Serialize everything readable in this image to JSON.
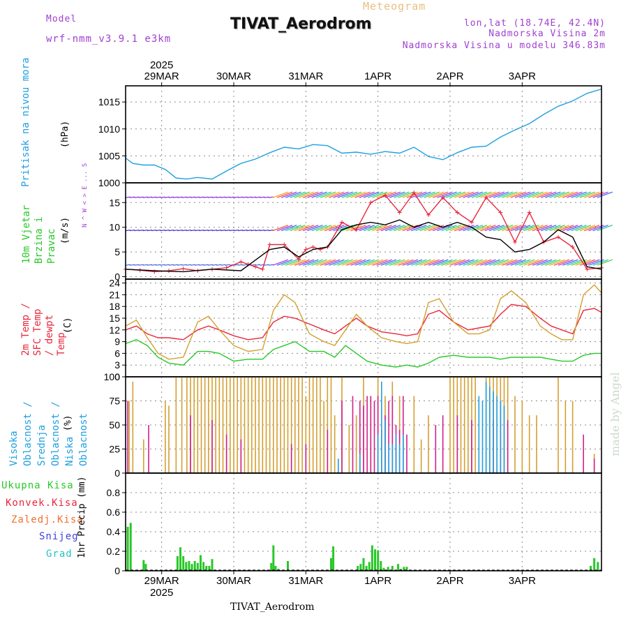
{
  "header": {
    "meteogram_label": "Meteogram",
    "model_label": "Model",
    "model_name": "wrf-nmm_v3.9.1 e3km",
    "station_title": "TIVAT_Aerodrom",
    "lonlat": "lon,lat (18.74E, 42.4N)",
    "elevation": "Nadmorska Visina 2m",
    "model_elevation": "Nadmorska Visina u modelu 346.83m",
    "footer_station": "TIVAT_Aerodrom",
    "watermark": "made by Angel"
  },
  "colors": {
    "pressure": "#1fa0e0",
    "temp2m": "#e8283c",
    "sfc": "#d4a030",
    "dewpt": "#28c828",
    "wind_black": "#000000",
    "rain": "#28c828",
    "conv": "#a03c28",
    "axis": "#000000",
    "grid": "#888888",
    "purple": "#a040d0"
  },
  "chart_data": [
    {
      "id": "pressure",
      "type": "line",
      "title": "Pritisak na nivou mora",
      "ylabel": "(hPa)",
      "ylim": [
        1000,
        1018
      ],
      "yticks": [
        1000,
        1005,
        1010,
        1015
      ],
      "x_days": [
        "29MAR",
        "30MAR",
        "31MAR",
        "1APR",
        "2APR",
        "3APR"
      ],
      "top_year": "2025",
      "x_start_day": 0.5,
      "series": [
        {
          "name": "Pritisak",
          "x": [
            0,
            0.1,
            0.25,
            0.4,
            0.55,
            0.7,
            0.85,
            1.0,
            1.2,
            1.4,
            1.6,
            1.8,
            2.0,
            2.2,
            2.4,
            2.6,
            2.8,
            3.0,
            3.2,
            3.4,
            3.6,
            3.8,
            4.0,
            4.2,
            4.4,
            4.6,
            4.8,
            5.0,
            5.2,
            5.4,
            5.6,
            5.8,
            6.0,
            6.2,
            6.4,
            6.6
          ],
          "y": [
            1004.6,
            1003.6,
            1003.3,
            1003.3,
            1002.5,
            1000.9,
            1000.7,
            1001.0,
            1000.7,
            1002.2,
            1003.6,
            1004.4,
            1005.6,
            1006.6,
            1006.3,
            1007.1,
            1006.9,
            1005.5,
            1005.7,
            1005.3,
            1005.8,
            1005.5,
            1006.6,
            1004.9,
            1004.3,
            1005.6,
            1006.6,
            1006.8,
            1008.5,
            1009.8,
            1011.0,
            1012.7,
            1014.2,
            1015.2,
            1016.6,
            1017.4
          ]
        }
      ]
    },
    {
      "id": "wind",
      "type": "line",
      "title": "10m Vjetar Brzina i Pravac",
      "ylabel": "(m/s)",
      "ylim": [
        -0.5,
        19
      ],
      "yticks": [
        0,
        5,
        10,
        15
      ],
      "compass": "N ^ W < > E ... S",
      "series": [
        {
          "name": "Brzina (red)",
          "x": [
            0,
            0.2,
            0.4,
            0.6,
            0.8,
            1.0,
            1.2,
            1.4,
            1.6,
            1.7,
            1.8,
            1.9,
            2.0,
            2.2,
            2.4,
            2.5,
            2.6,
            2.7,
            2.8,
            3.0,
            3.2,
            3.4,
            3.6,
            3.8,
            4.0,
            4.2,
            4.4,
            4.6,
            4.8,
            5.0,
            5.2,
            5.4,
            5.6,
            5.8,
            6.0,
            6.2,
            6.4,
            6.6
          ],
          "y": [
            1.5,
            1.3,
            1.0,
            1.2,
            1.6,
            1.2,
            1.5,
            1.8,
            3.0,
            2.5,
            2.0,
            1.5,
            6.5,
            6.5,
            3.5,
            5.5,
            6.0,
            5.5,
            6.0,
            11.0,
            9.5,
            15.0,
            16.5,
            13.0,
            17.0,
            12.5,
            16.0,
            13.0,
            11.0,
            16.0,
            13.0,
            7.0,
            13.0,
            7.0,
            8.0,
            6.0,
            1.5,
            1.8
          ]
        },
        {
          "name": "Brzina (black)",
          "x": [
            0,
            0.4,
            0.8,
            1.2,
            1.6,
            2.0,
            2.2,
            2.4,
            2.6,
            2.8,
            3.0,
            3.2,
            3.4,
            3.6,
            3.8,
            4.0,
            4.2,
            4.4,
            4.6,
            4.8,
            5.0,
            5.2,
            5.4,
            5.6,
            5.8,
            6.0,
            6.2,
            6.4,
            6.6
          ],
          "y": [
            1.5,
            1.2,
            1.0,
            1.5,
            1.2,
            5.5,
            6.0,
            4.0,
            5.5,
            6.0,
            9.5,
            10.5,
            11.0,
            10.5,
            11.5,
            10.0,
            11.0,
            10.0,
            11.0,
            10.0,
            8.0,
            7.5,
            5.0,
            5.5,
            7.0,
            9.5,
            8.0,
            2.0,
            1.5
          ]
        }
      ],
      "direction_bands": [
        {
          "level": 16,
          "from": 0.0,
          "to": 6.6,
          "label": "N-S"
        },
        {
          "level": 9.3,
          "from": 0.0,
          "to": 6.6,
          "label": "E-W"
        },
        {
          "level": 2.3,
          "from": 0.0,
          "to": 6.6,
          "label": "W-E"
        }
      ]
    },
    {
      "id": "temperature",
      "type": "line",
      "title": "2m Temp / SFC Temp / dewpt Temp",
      "ylabel": "(C)",
      "ylim": [
        0,
        25
      ],
      "yticks": [
        0,
        3,
        6,
        9,
        12,
        15,
        18,
        21,
        24
      ],
      "series": [
        {
          "name": "2m Temp",
          "x": [
            0,
            0.15,
            0.3,
            0.45,
            0.6,
            0.8,
            1.0,
            1.15,
            1.3,
            1.5,
            1.7,
            1.9,
            2.05,
            2.2,
            2.35,
            2.55,
            2.75,
            2.9,
            3.05,
            3.2,
            3.35,
            3.55,
            3.75,
            3.9,
            4.05,
            4.2,
            4.35,
            4.55,
            4.75,
            4.9,
            5.05,
            5.2,
            5.35,
            5.55,
            5.75,
            5.9,
            6.05,
            6.2,
            6.35,
            6.5,
            6.6
          ],
          "y": [
            12,
            13,
            11,
            10,
            10,
            9.5,
            12,
            13,
            12,
            10.5,
            9.5,
            10,
            14,
            15.5,
            15,
            13.5,
            12,
            11,
            13,
            15,
            13,
            11.5,
            11,
            10.5,
            11,
            16,
            17,
            14,
            12,
            12.5,
            13,
            16,
            18.5,
            18,
            15,
            13,
            12,
            11,
            17,
            17.5,
            16.5
          ]
        },
        {
          "name": "SFC Temp",
          "x": [
            0,
            0.15,
            0.3,
            0.45,
            0.6,
            0.8,
            1.0,
            1.15,
            1.3,
            1.5,
            1.7,
            1.9,
            2.05,
            2.2,
            2.35,
            2.55,
            2.75,
            2.9,
            3.05,
            3.2,
            3.35,
            3.55,
            3.75,
            3.9,
            4.05,
            4.2,
            4.35,
            4.55,
            4.75,
            4.9,
            5.05,
            5.2,
            5.35,
            5.55,
            5.75,
            5.9,
            6.05,
            6.2,
            6.35,
            6.5,
            6.6
          ],
          "y": [
            13,
            14.5,
            10,
            6,
            4.5,
            5,
            14,
            15.5,
            12,
            8,
            6.5,
            7,
            17,
            21,
            19,
            11,
            9,
            8,
            12,
            16,
            13,
            10,
            9,
            8.5,
            9,
            19,
            20,
            14,
            11,
            11,
            12,
            20,
            22,
            19,
            13,
            11,
            9.5,
            9.5,
            21,
            23.5,
            21.5
          ]
        },
        {
          "name": "dewpt Temp",
          "x": [
            0,
            0.15,
            0.3,
            0.45,
            0.6,
            0.8,
            1.0,
            1.15,
            1.3,
            1.5,
            1.7,
            1.9,
            2.05,
            2.2,
            2.35,
            2.55,
            2.75,
            2.9,
            3.05,
            3.2,
            3.35,
            3.55,
            3.75,
            3.9,
            4.05,
            4.2,
            4.35,
            4.55,
            4.75,
            4.9,
            5.05,
            5.2,
            5.35,
            5.55,
            5.75,
            5.9,
            6.05,
            6.2,
            6.35,
            6.5,
            6.6
          ],
          "y": [
            8.5,
            9.5,
            8,
            5,
            3.5,
            3,
            6.5,
            6.5,
            6,
            4,
            4.5,
            4.5,
            7,
            8,
            9,
            6.5,
            6.5,
            5,
            8,
            6,
            4,
            3,
            2.5,
            3,
            2.5,
            3.5,
            5,
            5.5,
            5,
            5,
            5,
            4.5,
            5,
            5,
            5,
            4.5,
            4,
            4,
            5.5,
            6,
            6
          ]
        }
      ]
    },
    {
      "id": "clouds",
      "type": "bar",
      "title": "Visoka Oblacnost / Srednja Oblacnost / Niska Oblacnost",
      "ylabel": "(%)",
      "ylim": [
        0,
        100
      ],
      "yticks": [
        0,
        25,
        50,
        75,
        100
      ],
      "series": [
        {
          "name": "Srednja Oblacnost",
          "x": [
            0.05,
            0.1,
            0.25,
            0.55,
            0.6,
            0.7,
            0.78,
            0.85,
            0.9,
            0.95,
            1.0,
            1.05,
            1.1,
            1.15,
            1.2,
            1.25,
            1.3,
            1.35,
            1.4,
            1.45,
            1.5,
            1.55,
            1.6,
            1.65,
            1.7,
            1.75,
            1.8,
            1.85,
            1.9,
            1.95,
            2.0,
            2.05,
            2.1,
            2.15,
            2.2,
            2.25,
            2.3,
            2.35,
            2.4,
            2.45,
            2.5,
            2.55,
            2.6,
            2.65,
            2.7,
            2.75,
            2.8,
            2.85,
            2.9,
            3.0,
            3.1,
            3.2,
            3.3,
            3.4,
            3.5,
            3.6,
            3.7,
            3.8,
            4.0,
            4.1,
            4.2,
            4.5,
            4.55,
            4.6,
            4.65,
            4.7,
            4.75,
            4.8,
            4.85,
            5.0,
            5.05,
            5.1,
            5.15,
            5.2,
            5.25,
            5.3,
            5.4,
            5.5,
            5.6,
            5.7,
            6.0,
            6.1,
            6.2,
            6.5
          ],
          "y": [
            75,
            95,
            35,
            75,
            70,
            100,
            100,
            100,
            100,
            100,
            100,
            100,
            100,
            100,
            100,
            100,
            100,
            100,
            100,
            100,
            100,
            100,
            100,
            100,
            100,
            100,
            100,
            100,
            100,
            100,
            100,
            100,
            100,
            100,
            100,
            100,
            100,
            100,
            100,
            100,
            80,
            100,
            100,
            100,
            100,
            75,
            100,
            100,
            60,
            100,
            50,
            60,
            100,
            80,
            100,
            80,
            95,
            80,
            80,
            35,
            60,
            100,
            100,
            100,
            100,
            100,
            100,
            100,
            100,
            100,
            100,
            100,
            100,
            100,
            100,
            100,
            80,
            75,
            60,
            60,
            100,
            75,
            75,
            20
          ]
        },
        {
          "name": "Niska Oblacnost",
          "x": [
            0.03,
            0.32,
            0.9,
            1.2,
            1.4,
            1.6,
            2.3,
            2.5,
            2.8,
            3.0,
            3.15,
            3.25,
            3.3,
            3.35,
            3.4,
            3.45,
            3.5,
            3.55,
            3.6,
            3.65,
            3.7,
            3.75,
            3.8,
            3.85,
            3.9,
            4.3,
            4.4,
            4.6,
            4.8,
            5.1,
            5.2,
            5.3,
            6.35,
            6.5
          ],
          "y": [
            75,
            50,
            60,
            55,
            40,
            35,
            30,
            30,
            45,
            75,
            80,
            75,
            70,
            80,
            80,
            75,
            80,
            45,
            60,
            75,
            80,
            50,
            45,
            80,
            40,
            50,
            60,
            60,
            55,
            55,
            75,
            55,
            40,
            15
          ]
        },
        {
          "name": "Visoka Oblacnost",
          "x": [
            2.95,
            3.25,
            3.5,
            3.55,
            3.6,
            3.65,
            3.7,
            3.75,
            3.8,
            3.85,
            4.9,
            4.95,
            5.0,
            5.05,
            5.1,
            5.15,
            5.2,
            5.25
          ],
          "y": [
            15,
            20,
            40,
            95,
            55,
            30,
            30,
            40,
            30,
            40,
            80,
            75,
            95,
            90,
            85,
            80,
            75,
            70
          ]
        }
      ]
    },
    {
      "id": "precip",
      "type": "bar",
      "title": "Ukupna Kisa / Konvek.Kisa / Zaledj.Kisa / Snijeg / Grad",
      "ylabel": "1hr Precip (mm)",
      "ylim": [
        0,
        1
      ],
      "yticks": [
        0,
        0.2,
        0.4,
        0.6,
        0.8
      ],
      "legend": [
        "Ukupna Kisa",
        "Konvek.Kisa",
        "Zaledj.Kisa",
        "Snijeg",
        "Grad"
      ],
      "series": [
        {
          "name": "Ukupna Kisa",
          "x": [
            0.03,
            0.07,
            0.25,
            0.28,
            0.72,
            0.76,
            0.8,
            0.84,
            0.88,
            0.92,
            0.96,
            1.0,
            1.04,
            1.08,
            1.12,
            1.16,
            1.2,
            2.02,
            2.05,
            2.08,
            2.12,
            2.25,
            2.85,
            2.88,
            3.22,
            3.26,
            3.3,
            3.34,
            3.38,
            3.42,
            3.46,
            3.5,
            3.54,
            3.58,
            3.64,
            3.7,
            3.78,
            3.82,
            3.86,
            3.9,
            6.45,
            6.5,
            6.55
          ],
          "y": [
            0.45,
            0.49,
            0.11,
            0.07,
            0.15,
            0.24,
            0.15,
            0.09,
            0.1,
            0.07,
            0.1,
            0.08,
            0.16,
            0.09,
            0.05,
            0.05,
            0.12,
            0.08,
            0.26,
            0.05,
            0.02,
            0.1,
            0.13,
            0.25,
            0.05,
            0.07,
            0.13,
            0.05,
            0.09,
            0.26,
            0.22,
            0.21,
            0.1,
            0.03,
            0.04,
            0.05,
            0.07,
            0.02,
            0.04,
            0.04,
            0.05,
            0.13,
            0.09
          ]
        }
      ]
    }
  ]
}
